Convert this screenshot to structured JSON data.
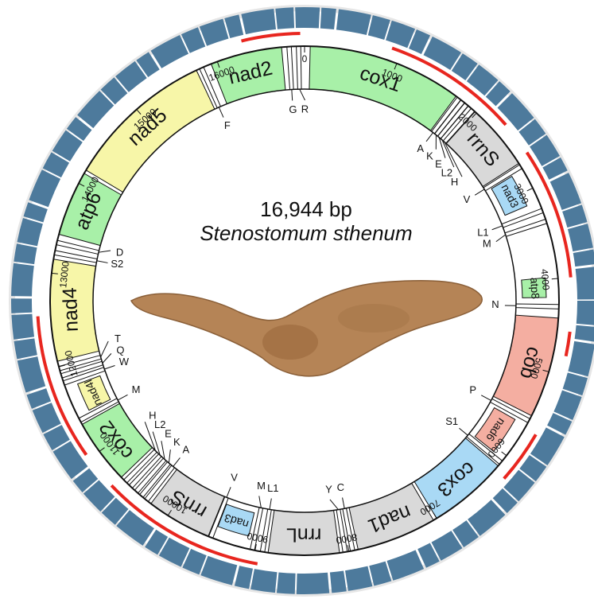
{
  "title": "16,944 bp",
  "species": "Stenostomum sthenum",
  "genome_length": 16944,
  "position_ticks": [
    0,
    1000,
    2000,
    3000,
    4000,
    5000,
    6000,
    7000,
    8000,
    9000,
    10000,
    11000,
    12000,
    13000,
    14000,
    15000,
    16000
  ],
  "genes": [
    {
      "label": "cox1",
      "start": 60,
      "end": 1720,
      "color": "#a8f0a8"
    },
    {
      "label": "rrnS",
      "start": 1980,
      "end": 2700,
      "color": "#d9d9d9"
    },
    {
      "label": "nad3",
      "start": 2780,
      "end": 3150,
      "color": "#a9d9f5"
    },
    {
      "label": "atp8",
      "start": 3980,
      "end": 4200,
      "color": "#a8f0a8"
    },
    {
      "label": "cob",
      "start": 4420,
      "end": 5500,
      "color": "#f4aea1"
    },
    {
      "label": "nad6",
      "start": 5620,
      "end": 6050,
      "color": "#f4aea1"
    },
    {
      "label": "cox3",
      "start": 6140,
      "end": 7000,
      "color": "#a9d9f5"
    },
    {
      "label": "nad1",
      "start": 7040,
      "end": 7900,
      "color": "#d9d9d9"
    },
    {
      "label": "rrnL",
      "start": 8100,
      "end": 8860,
      "color": "#d9d9d9"
    },
    {
      "label": "nad3",
      "start": 9100,
      "end": 9460,
      "color": "#a9d9f5"
    },
    {
      "label": "rrnS",
      "start": 9520,
      "end": 10220,
      "color": "#d9d9d9"
    },
    {
      "label": "cox2",
      "start": 10640,
      "end": 11340,
      "color": "#a8f0a8"
    },
    {
      "label": "nad4l",
      "start": 11440,
      "end": 11760,
      "color": "#f7f6a8"
    },
    {
      "label": "nad4",
      "start": 12060,
      "end": 13150,
      "color": "#f7f6a8"
    },
    {
      "label": "atp6",
      "start": 13420,
      "end": 14120,
      "color": "#a8f0a8"
    },
    {
      "label": "nad5",
      "start": 14160,
      "end": 15760,
      "color": "#f7f6a8"
    },
    {
      "label": "nad2",
      "start": 15930,
      "end": 16700,
      "color": "#a8f0a8"
    }
  ],
  "trnas": [
    {
      "label": "A",
      "pos": 1760
    },
    {
      "label": "K",
      "pos": 1810
    },
    {
      "label": "E",
      "pos": 1860
    },
    {
      "label": "L2",
      "pos": 1910
    },
    {
      "label": "H",
      "pos": 1950
    },
    {
      "label": "V",
      "pos": 2740
    },
    {
      "label": "L1",
      "pos": 3260
    },
    {
      "label": "M",
      "pos": 3380
    },
    {
      "label": "N",
      "pos": 4300
    },
    {
      "label": "P",
      "pos": 5560
    },
    {
      "label": "S1",
      "pos": 6095
    },
    {
      "label": "C",
      "pos": 7960
    },
    {
      "label": "Y",
      "pos": 8040
    },
    {
      "label": "L1",
      "pos": 8920
    },
    {
      "label": "M",
      "pos": 9030
    },
    {
      "label": "V",
      "pos": 9490
    },
    {
      "label": "A",
      "pos": 10280
    },
    {
      "label": "K",
      "pos": 10350
    },
    {
      "label": "E",
      "pos": 10420
    },
    {
      "label": "L2",
      "pos": 10500
    },
    {
      "label": "H",
      "pos": 10580
    },
    {
      "label": "M",
      "pos": 11390
    },
    {
      "label": "W",
      "pos": 11820
    },
    {
      "label": "Q",
      "pos": 11900
    },
    {
      "label": "T",
      "pos": 11980
    },
    {
      "label": "S2",
      "pos": 13220
    },
    {
      "label": "D",
      "pos": 13330
    },
    {
      "label": "F",
      "pos": 15820
    },
    {
      "label": "G",
      "pos": 16780
    },
    {
      "label": "R",
      "pos": 16880
    }
  ],
  "red_arcs": [
    {
      "start": 16300,
      "end": 16900
    },
    {
      "start": 900,
      "end": 2300
    },
    {
      "start": 2650,
      "end": 4000
    },
    {
      "start": 4550,
      "end": 4800
    },
    {
      "start": 5650,
      "end": 6200
    },
    {
      "start": 8950,
      "end": 10650
    },
    {
      "start": 11050,
      "end": 12550
    }
  ]
}
